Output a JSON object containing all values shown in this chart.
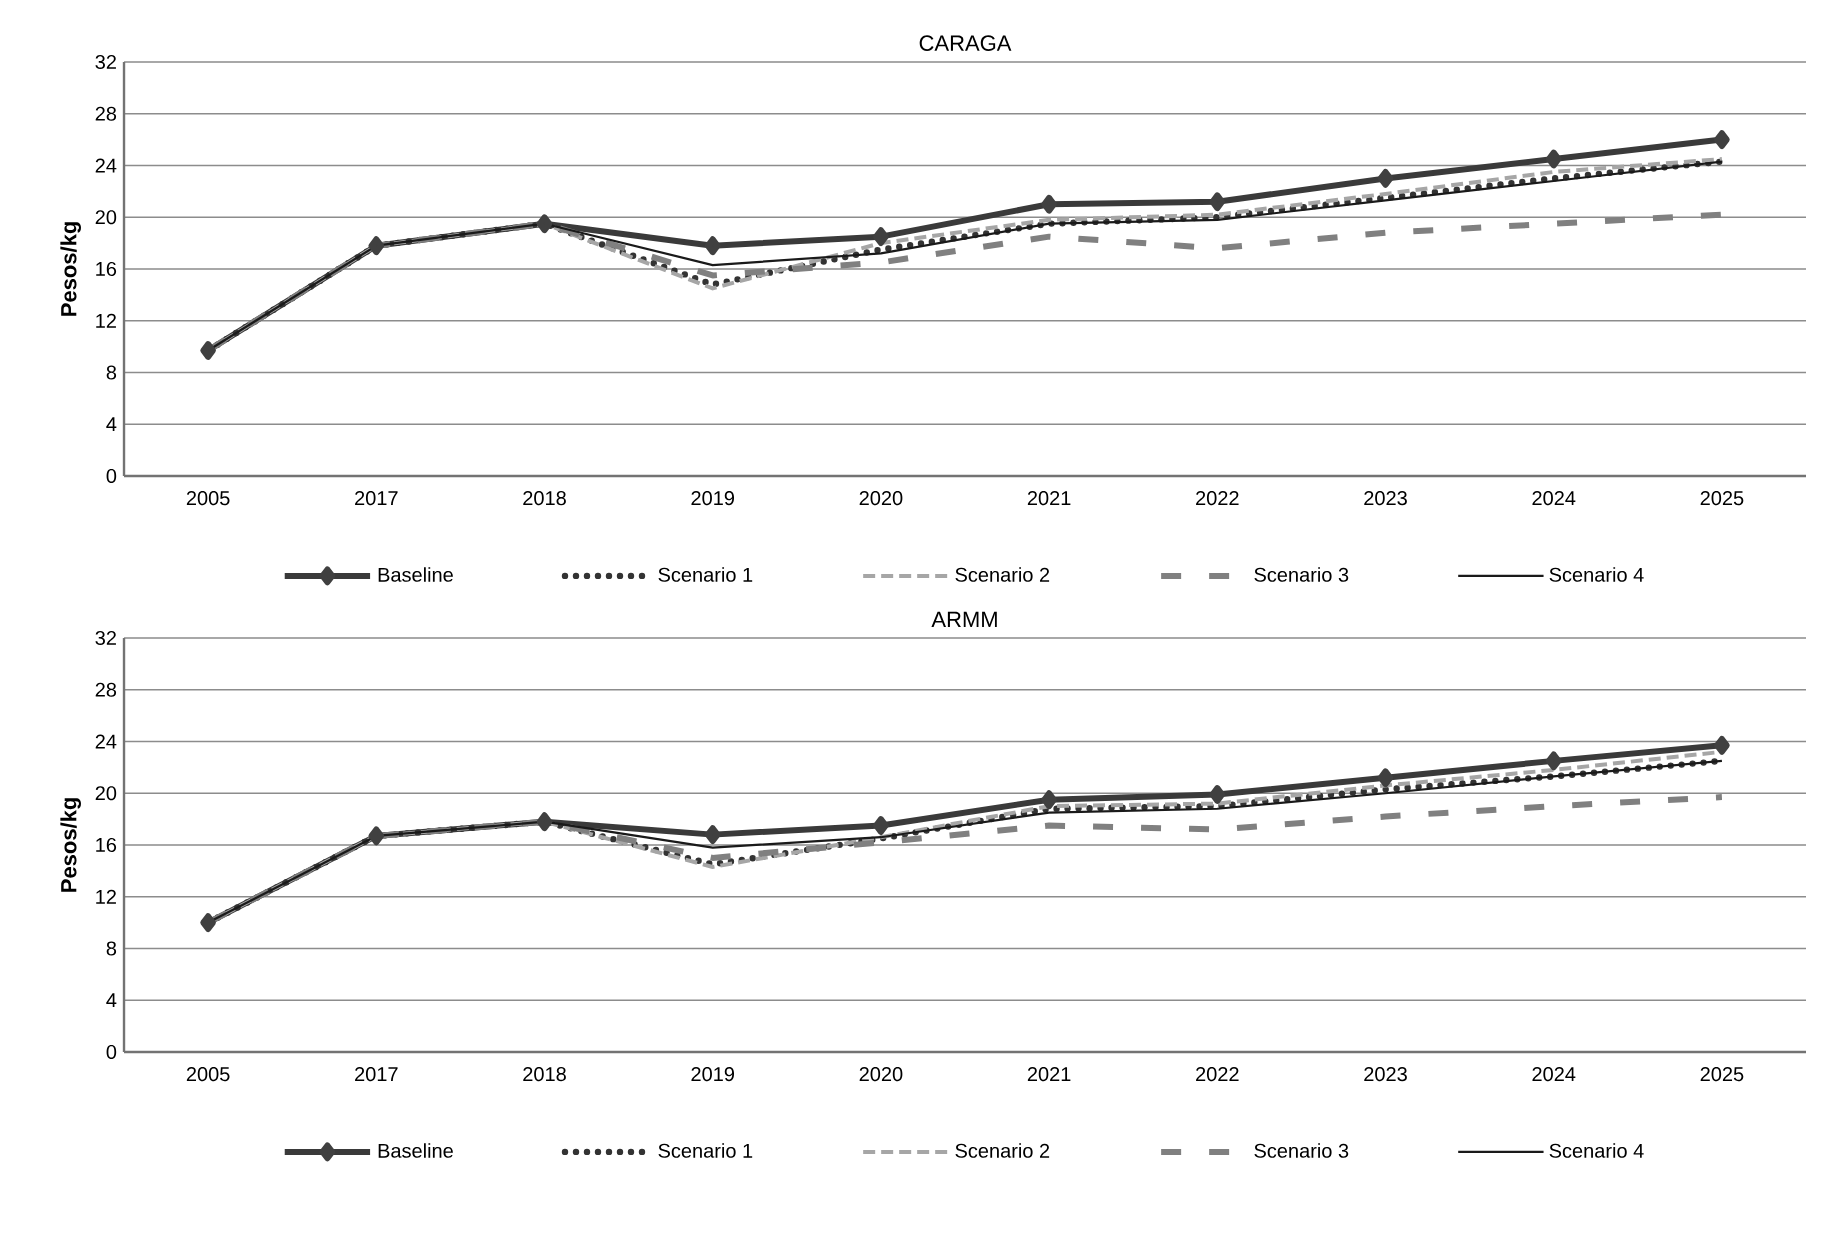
{
  "chart_data": [
    {
      "type": "line",
      "title": "CARAGA",
      "ylabel": "Pesos/kg",
      "categories": [
        "2005",
        "2017",
        "2018",
        "2019",
        "2020",
        "2021",
        "2022",
        "2023",
        "2024",
        "2025"
      ],
      "ylim": [
        0,
        32
      ],
      "yticks": [
        0,
        4,
        8,
        12,
        16,
        20,
        24,
        28,
        32
      ],
      "grid": "y",
      "legend": "bottom",
      "series": [
        {
          "name": "Baseline",
          "color": "#3a3a3a",
          "marker": "diamond",
          "line_style": "solid",
          "values": [
            9.7,
            17.8,
            19.5,
            17.8,
            18.5,
            21,
            21.2,
            23,
            24.5,
            26
          ]
        },
        {
          "name": "Scenario 1",
          "color": "#333333",
          "marker": "none",
          "line_style": "dotted",
          "values": [
            9.7,
            17.8,
            19.5,
            14.8,
            17.5,
            19.5,
            20,
            21.5,
            23,
            24.3
          ]
        },
        {
          "name": "Scenario 2",
          "color": "#a6a6a6",
          "marker": "none",
          "line_style": "dashed",
          "values": [
            9.7,
            17.8,
            19.5,
            14.5,
            18,
            19.8,
            20.2,
            21.8,
            23.5,
            24.5
          ]
        },
        {
          "name": "Scenario 3",
          "color": "#808080",
          "marker": "none",
          "line_style": "longdashed",
          "values": [
            9.7,
            17.8,
            19.5,
            15.5,
            16.5,
            18.5,
            17.6,
            18.8,
            19.5,
            20.2
          ]
        },
        {
          "name": "Scenario 4",
          "color": "#1a1a1a",
          "marker": "none",
          "line_style": "solid",
          "values": [
            9.7,
            17.8,
            19.5,
            16.3,
            17.2,
            19.5,
            19.8,
            21.3,
            22.8,
            24.3
          ]
        }
      ]
    },
    {
      "type": "line",
      "title": "ARMM",
      "ylabel": "Pesos/kg",
      "categories": [
        "2005",
        "2017",
        "2018",
        "2019",
        "2020",
        "2021",
        "2022",
        "2023",
        "2024",
        "2025"
      ],
      "ylim": [
        0,
        32
      ],
      "yticks": [
        0,
        4,
        8,
        12,
        16,
        20,
        24,
        28,
        32
      ],
      "grid": "y",
      "legend": "bottom",
      "series": [
        {
          "name": "Baseline",
          "color": "#3a3a3a",
          "marker": "diamond",
          "line_style": "solid",
          "values": [
            10,
            16.7,
            17.8,
            16.8,
            17.5,
            19.5,
            19.9,
            21.2,
            22.5,
            23.7
          ]
        },
        {
          "name": "Scenario 1",
          "color": "#333333",
          "marker": "none",
          "line_style": "dotted",
          "values": [
            10,
            16.7,
            17.8,
            14.5,
            16.5,
            18.8,
            19,
            20.3,
            21.3,
            22.5
          ]
        },
        {
          "name": "Scenario 2",
          "color": "#a6a6a6",
          "marker": "none",
          "line_style": "dashed",
          "values": [
            10,
            16.7,
            17.8,
            14.3,
            16.6,
            19,
            19.2,
            20.6,
            21.8,
            23.2
          ]
        },
        {
          "name": "Scenario 3",
          "color": "#808080",
          "marker": "none",
          "line_style": "longdashed",
          "values": [
            10,
            16.7,
            17.8,
            15,
            16.2,
            17.5,
            17.2,
            18.2,
            19,
            19.7
          ]
        },
        {
          "name": "Scenario 4",
          "color": "#1a1a1a",
          "marker": "none",
          "line_style": "solid",
          "values": [
            10,
            16.7,
            17.8,
            15.8,
            16.6,
            18.5,
            18.8,
            20,
            21.3,
            22.5
          ]
        }
      ]
    }
  ]
}
